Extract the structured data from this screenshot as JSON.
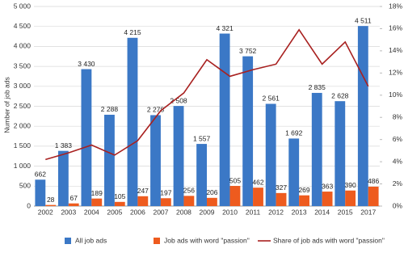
{
  "chart_data": {
    "type": "bar-line",
    "y_label": "Number of job ads",
    "categories": [
      "2002",
      "2003",
      "2004",
      "2005",
      "2006",
      "2007",
      "2008",
      "2009",
      "2010",
      "2011",
      "2012",
      "2013",
      "2014",
      "2015",
      "2017"
    ],
    "series": [
      {
        "name": "All job ads",
        "type": "bar",
        "color": "#3b78c6",
        "values": [
          662,
          1383,
          3430,
          2288,
          4215,
          2278,
          2508,
          1557,
          4321,
          3752,
          2561,
          1692,
          2835,
          2628,
          4511
        ],
        "value_labels": [
          "662",
          "1 383",
          "3 430",
          "2 288",
          "4 215",
          "2 278",
          "2 508",
          "1 557",
          "4 321",
          "3 752",
          "2 561",
          "1 692",
          "2 835",
          "2 628",
          "4 511"
        ]
      },
      {
        "name": "Job ads with word \"passion\"",
        "type": "bar",
        "color": "#ee5b1e",
        "values": [
          28,
          67,
          189,
          105,
          247,
          197,
          256,
          206,
          505,
          462,
          327,
          269,
          363,
          390,
          486
        ]
      },
      {
        "name": "Share of job ads with word \"passion\"",
        "type": "line",
        "axis": "y2",
        "color": "#a8201f",
        "values": [
          4.2,
          4.8,
          5.5,
          4.6,
          5.9,
          8.6,
          10.2,
          13.2,
          11.7,
          12.3,
          12.8,
          15.9,
          12.8,
          14.8,
          10.8
        ]
      }
    ],
    "ylim": [
      0,
      5000
    ],
    "yticks": [
      0,
      500,
      {
        "value": 1000,
        "label": "1 000"
      },
      {
        "value": 1500,
        "label": "1 500"
      },
      {
        "value": 2000,
        "label": "2 000"
      },
      {
        "value": 2500,
        "label": "2 500"
      },
      {
        "value": 3000,
        "label": "3 000"
      },
      {
        "value": 3500,
        "label": "3 500"
      },
      {
        "value": 4000,
        "label": "4 000"
      },
      {
        "value": 4500,
        "label": "4 500"
      },
      {
        "value": 5000,
        "label": "5 000"
      }
    ],
    "y2lim": [
      0,
      18
    ],
    "y2ticks": [
      {
        "value": 0,
        "label": "0%"
      },
      {
        "value": 2,
        "label": "2%"
      },
      {
        "value": 4,
        "label": "4%"
      },
      {
        "value": 6,
        "label": "6%"
      },
      {
        "value": 8,
        "label": "8%"
      },
      {
        "value": 10,
        "label": "10%"
      },
      {
        "value": 12,
        "label": "12%"
      },
      {
        "value": 14,
        "label": "14%"
      },
      {
        "value": 16,
        "label": "16%"
      },
      {
        "value": 18,
        "label": "18%"
      }
    ],
    "grid": true,
    "legend": "bottom"
  }
}
